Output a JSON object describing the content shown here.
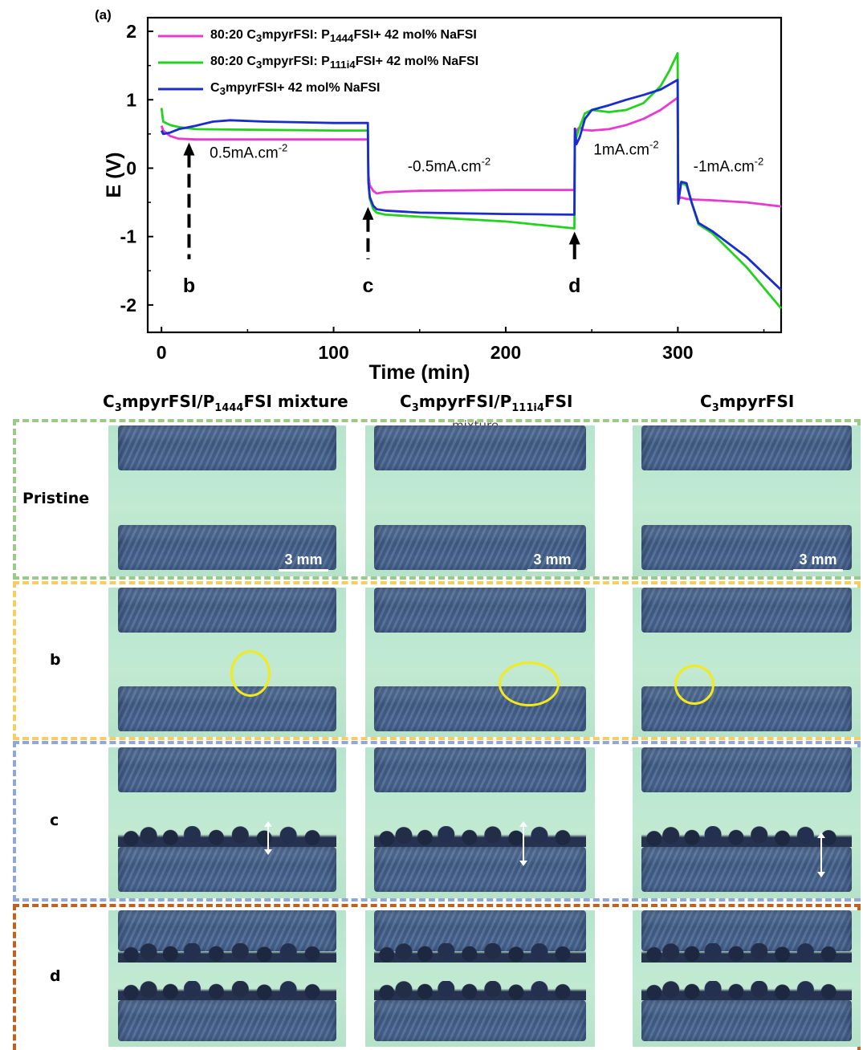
{
  "panel_label": "(a)",
  "chart_data": {
    "type": "line",
    "xlabel": "Time (min)",
    "ylabel": "E (V)",
    "xlim": [
      -8,
      360
    ],
    "ylim": [
      -2.4,
      2.2
    ],
    "xticks": [
      0,
      100,
      200,
      300
    ],
    "yticks": [
      -2,
      -1,
      0,
      1,
      2
    ],
    "legend_position": "top-left",
    "series": [
      {
        "name": "80:20 C3mpyrFSI: P1444FSI+ 42 mol% NaFSI",
        "legend_html": "80:20 C<sub>3</sub>mpyrFSI: P<sub>1444</sub>FSI+ 42 mol% NaFSI",
        "color": "#e83ad1",
        "x": [
          0,
          1,
          5,
          10,
          20,
          60,
          100,
          119.9,
          120.2,
          121,
          123,
          125,
          130,
          150,
          200,
          239.9,
          240.2,
          241,
          243,
          245,
          250,
          260,
          270,
          280,
          290,
          299.9,
          300.2,
          302,
          305,
          310,
          320,
          340,
          360
        ],
        "y": [
          0.62,
          0.55,
          0.47,
          0.43,
          0.42,
          0.42,
          0.42,
          0.42,
          -0.1,
          -0.25,
          -0.33,
          -0.37,
          -0.35,
          -0.33,
          -0.32,
          -0.32,
          0.5,
          0.55,
          0.6,
          0.56,
          0.55,
          0.57,
          0.63,
          0.72,
          0.85,
          1.03,
          -0.45,
          -0.43,
          -0.45,
          -0.46,
          -0.47,
          -0.5,
          -0.56
        ]
      },
      {
        "name": "80:20 C3mpyrFSI: P111i4FSI+ 42 mol% NaFSI",
        "legend_html": "80:20 C<sub>3</sub>mpyrFSI: P<sub>111i4</sub>FSI+ 42 mol% NaFSI",
        "color": "#21d31e",
        "x": [
          0,
          1,
          5,
          10,
          20,
          60,
          100,
          119.9,
          120.2,
          121,
          123,
          125,
          130,
          150,
          200,
          239.9,
          240.2,
          241,
          243,
          246,
          250,
          260,
          270,
          280,
          290,
          295,
          299.9,
          300.2,
          302,
          305,
          308,
          312,
          320,
          340,
          360
        ],
        "y": [
          0.88,
          0.68,
          0.63,
          0.6,
          0.57,
          0.56,
          0.55,
          0.55,
          -0.2,
          -0.45,
          -0.6,
          -0.65,
          -0.68,
          -0.71,
          -0.78,
          -0.88,
          0.35,
          0.45,
          0.6,
          0.8,
          0.85,
          0.82,
          0.85,
          0.95,
          1.2,
          1.42,
          1.68,
          -0.25,
          -0.22,
          -0.25,
          -0.5,
          -0.82,
          -0.95,
          -1.45,
          -2.05
        ]
      },
      {
        "name": "C3mpyrFSI+ 42 mol% NaFSI",
        "legend_html": "C<sub>3</sub>mpyrFSI+ 42 mol% NaFSI",
        "color": "#1a2ccd",
        "x": [
          0,
          1,
          5,
          10,
          20,
          30,
          40,
          60,
          100,
          119.9,
          120.2,
          121,
          123,
          125,
          130,
          150,
          200,
          239.9,
          240.2,
          241,
          243,
          246,
          250,
          260,
          270,
          280,
          290,
          299.9,
          300.2,
          302,
          305,
          308,
          312,
          320,
          340,
          360
        ],
        "y": [
          0.55,
          0.5,
          0.52,
          0.57,
          0.62,
          0.68,
          0.7,
          0.68,
          0.66,
          0.66,
          -0.2,
          -0.42,
          -0.55,
          -0.6,
          -0.62,
          -0.65,
          -0.67,
          -0.68,
          0.58,
          0.35,
          0.45,
          0.72,
          0.85,
          0.92,
          1.0,
          1.07,
          1.15,
          1.29,
          -0.52,
          -0.2,
          -0.22,
          -0.5,
          -0.8,
          -0.92,
          -1.3,
          -1.78
        ]
      }
    ],
    "annotations": [
      {
        "text": "0.5mA.cm",
        "sup": "-2",
        "x": 28,
        "y": 0.15
      },
      {
        "text": "-0.5mA.cm",
        "sup": "-2",
        "x": 143,
        "y": -0.05
      },
      {
        "text": "1mA.cm",
        "sup": "-2",
        "x": 251,
        "y": 0.2
      },
      {
        "text": "-1mA.cm",
        "sup": "-2",
        "x": 309,
        "y": -0.05
      }
    ],
    "markers": [
      {
        "label": "b",
        "x": 16,
        "y_tip": 0.42,
        "dashed": true
      },
      {
        "label": "c",
        "x": 120,
        "y_tip": -0.52,
        "dashed": true
      },
      {
        "label": "d",
        "x": 240,
        "y_tip": -0.88,
        "dashed": false
      }
    ]
  },
  "image_grid": {
    "columns": [
      {
        "html": "C<sub>3</sub>mpyrFSI/P<sub>1444</sub>FSI mixture"
      },
      {
        "html": "C<sub>3</sub>mpyrFSI/P<sub>111i4</sub>FSI"
      },
      {
        "html": "C<sub>3</sub>mpyrFSI"
      }
    ],
    "column_overflow_text": "mixture",
    "rows": [
      {
        "label": "Pristine",
        "border_color": "#9cc98a"
      },
      {
        "label": "b",
        "border_color": "#f5cd62"
      },
      {
        "label": "c",
        "border_color": "#8ea9d8"
      },
      {
        "label": "d",
        "border_color": "#c0621f"
      }
    ],
    "scale_bar": "3 mm",
    "highlight_colors": {
      "circle": "#f2ea1c",
      "arrow": "#ffffff"
    }
  }
}
